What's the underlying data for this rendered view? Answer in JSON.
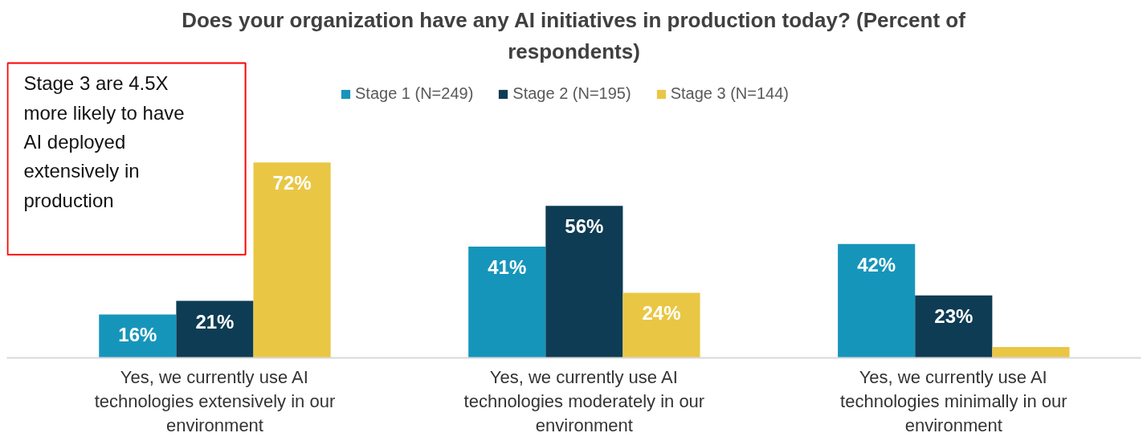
{
  "chart_data": {
    "type": "bar",
    "title": "Does your organization have any AI initiatives in production today? (Percent of respondents)",
    "categories": [
      "Yes, we currently use AI technologies extensively in our environment",
      "Yes, we currently use AI technologies moderately in our environment",
      "Yes, we currently use AI technologies minimally in our environment"
    ],
    "series": [
      {
        "name": "Stage 1 (N=249)",
        "color": "#1695bb",
        "values": [
          16,
          41,
          42
        ],
        "value_labels": [
          "16%",
          "41%",
          "42%"
        ]
      },
      {
        "name": "Stage 2 (N=195)",
        "color": "#0e3c54",
        "values": [
          21,
          56,
          23
        ],
        "value_labels": [
          "21%",
          "56%",
          "23%"
        ]
      },
      {
        "name": "Stage 3 (N=144)",
        "color": "#e9c744",
        "values": [
          72,
          24,
          4
        ],
        "value_labels": [
          "72%",
          "24%",
          null
        ]
      }
    ],
    "annotations": [
      "Stage 3 are 4.5X more likely to have AI deployed extensively in production"
    ],
    "legend": "top",
    "grid": false
  }
}
